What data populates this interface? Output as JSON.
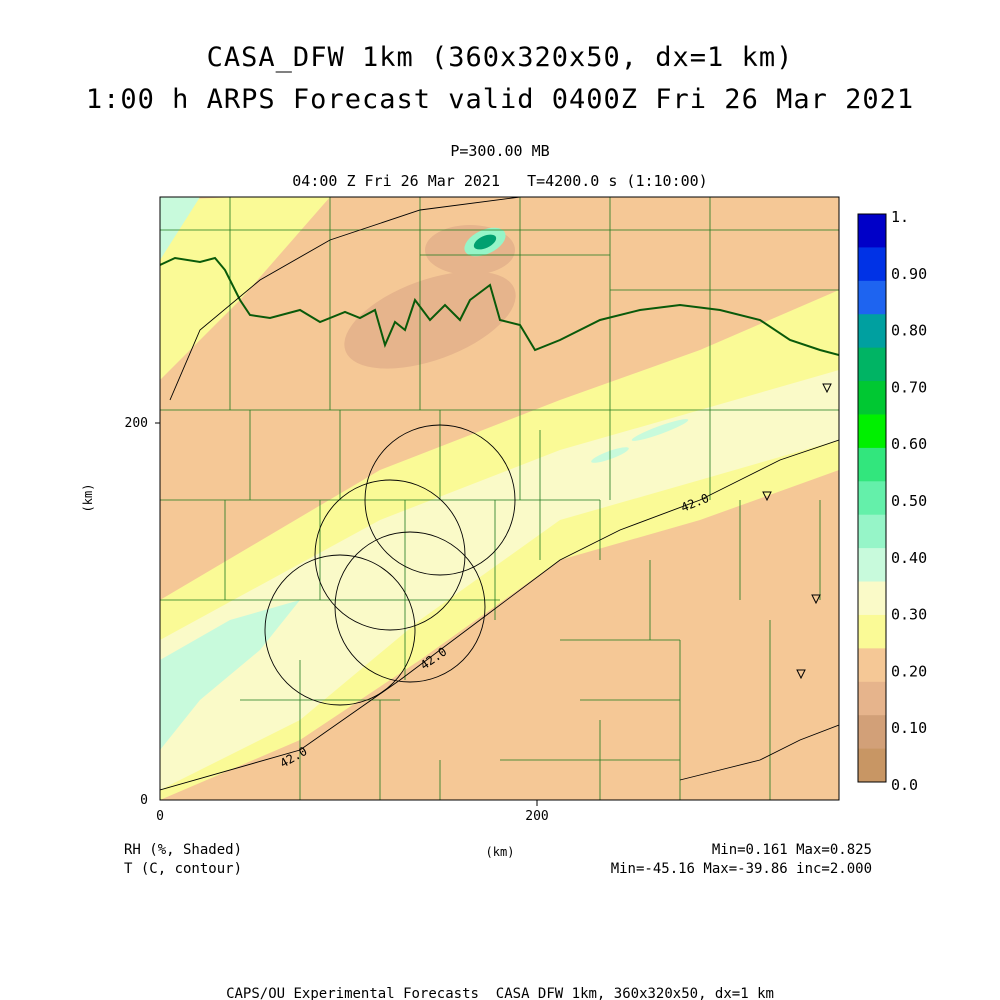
{
  "header": {
    "title_line1": "CASA_DFW 1km (360x320x50, dx=1 km)",
    "title_line2": "1:00 h ARPS Forecast valid 0400Z Fri 26 Mar 2021",
    "pressure": "P=300.00 MB",
    "time_line": "04:00 Z Fri 26 Mar 2021   T=4200.0 s (1:10:00)"
  },
  "axes": {
    "y_label": "(km)",
    "x_label": "(km)",
    "x_ticks": [
      "0",
      "200"
    ],
    "y_ticks": [
      "0",
      "200"
    ],
    "contour_labels": [
      "42.0",
      "42.0",
      "42.0"
    ]
  },
  "colorbar": {
    "labels": [
      "1.",
      "0.90",
      "0.80",
      "0.70",
      "0.60",
      "0.50",
      "0.40",
      "0.30",
      "0.20",
      "0.10",
      "0.0"
    ],
    "colors": [
      "#0000c8",
      "#0032e6",
      "#1e64f0",
      "#00a0a0",
      "#00b464",
      "#00c832",
      "#00f000",
      "#32e67d",
      "#64f0aa",
      "#96f5c8",
      "#c8fadc",
      "#fafac8",
      "#fafa96",
      "#f5c896",
      "#e6b48c",
      "#d2a078",
      "#c89664"
    ]
  },
  "footer": {
    "field1": "RH (%, Shaded)",
    "field2": "T (C, contour)",
    "stats1": "Min=0.161 Max=0.825",
    "stats2": "Min=-45.16 Max=-39.86 inc=2.000",
    "credit": "CAPS/OU Experimental Forecasts  CASA DFW 1km, 360x320x50, dx=1 km"
  },
  "map_colors": {
    "county_line": "#1e7a1e",
    "state_line": "#0a5a0a",
    "contour": "#000000"
  }
}
